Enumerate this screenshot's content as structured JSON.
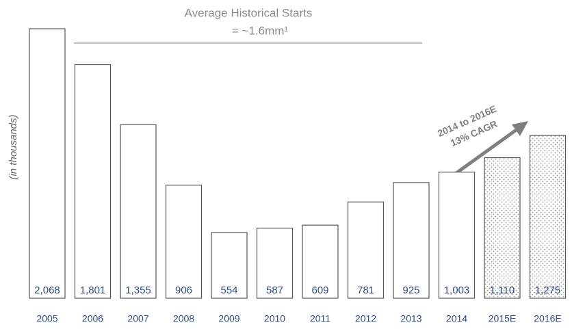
{
  "chart_data": {
    "type": "bar",
    "y_label": "(in thousands)",
    "annotations": [
      "Average Historical Starts",
      "= ~1.6mm¹",
      "2014 to 2016E",
      "13% CAGR"
    ],
    "categories": [
      "2005",
      "2006",
      "2007",
      "2008",
      "2009",
      "2010",
      "2011",
      "2012",
      "2013",
      "2014",
      "2015E",
      "2016E"
    ],
    "values": [
      2068,
      1801,
      1355,
      906,
      554,
      587,
      609,
      781,
      925,
      1003,
      1110,
      1275
    ],
    "value_labels": [
      "2,068",
      "1,801",
      "1,355",
      "906",
      "554",
      "587",
      "609",
      "781",
      "925",
      "1,003",
      "1,110",
      "1,275"
    ],
    "dotted": [
      false,
      false,
      false,
      false,
      false,
      false,
      false,
      false,
      false,
      false,
      true,
      true
    ],
    "color": "#ffffff",
    "edge_color": "#555555",
    "label_color": "#2f4a8a"
  }
}
